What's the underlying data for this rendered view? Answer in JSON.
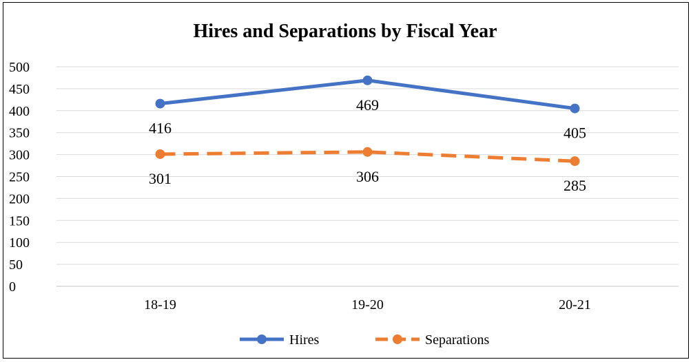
{
  "chart_data": {
    "type": "line",
    "title": "Hires and Separations by Fiscal Year",
    "xlabel": "",
    "ylabel": "",
    "categories": [
      "18-19",
      "19-20",
      "20-21"
    ],
    "ylim": [
      0,
      500
    ],
    "yticks": [
      0,
      50,
      100,
      150,
      200,
      250,
      300,
      350,
      400,
      450,
      500
    ],
    "grid": true,
    "legend_position": "bottom",
    "series": [
      {
        "name": "Hires",
        "values": [
          416,
          469,
          405
        ],
        "color": "#4472C4",
        "line_style": "solid",
        "data_labels": [
          "416",
          "469",
          "405"
        ]
      },
      {
        "name": "Separations",
        "values": [
          301,
          306,
          285
        ],
        "color": "#ED7D31",
        "line_style": "dashed",
        "data_labels": [
          "301",
          "306",
          "285"
        ]
      }
    ]
  }
}
